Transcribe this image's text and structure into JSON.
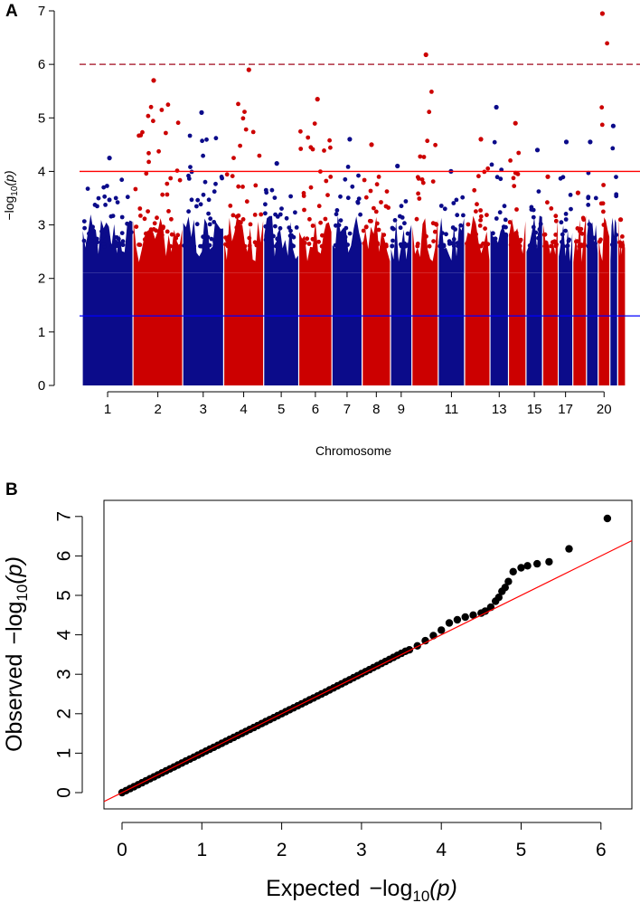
{
  "panels": {
    "a": {
      "label": "A"
    },
    "b": {
      "label": "B"
    }
  },
  "chart_data": [
    {
      "type": "scatter",
      "subtype": "manhattan",
      "title": "",
      "xlabel": "Chromosome",
      "ylabel_base": "−log",
      "ylabel_sub": "10",
      "ylabel_arg": "(p)",
      "ylim": [
        0,
        7
      ],
      "yticks": [
        "0",
        "1",
        "2",
        "3",
        "4",
        "5",
        "6",
        "7"
      ],
      "xtick_labels": [
        "1",
        "2",
        "3",
        "4",
        "5",
        "6",
        "7",
        "8",
        "9",
        "11",
        "13",
        "15",
        "17",
        "20"
      ],
      "xtick_chromosomes": [
        1,
        2,
        3,
        4,
        5,
        6,
        7,
        8,
        9,
        11,
        13,
        15,
        17,
        20
      ],
      "colors": {
        "odd": "#0b0b8a",
        "even": "#cc0000",
        "suggestive_line": "#ff0000",
        "genome_wide_line": "#b03040",
        "nominal_line": "#0000ff"
      },
      "thresholds": {
        "nominal": 1.3,
        "suggestive": 4.0,
        "genome_wide": 6.0
      },
      "chromosomes": [
        {
          "chr": 1,
          "peak": 4.25
        },
        {
          "chr": 2,
          "peak": 5.7
        },
        {
          "chr": 3,
          "peak": 5.1
        },
        {
          "chr": 4,
          "peak": 5.9
        },
        {
          "chr": 5,
          "peak": 4.15
        },
        {
          "chr": 6,
          "peak": 5.35
        },
        {
          "chr": 7,
          "peak": 4.6
        },
        {
          "chr": 8,
          "peak": 4.5
        },
        {
          "chr": 9,
          "peak": 4.1
        },
        {
          "chr": 10,
          "peak": 6.18
        },
        {
          "chr": 11,
          "peak": 4.0
        },
        {
          "chr": 12,
          "peak": 4.6
        },
        {
          "chr": 13,
          "peak": 5.2
        },
        {
          "chr": 14,
          "peak": 4.9
        },
        {
          "chr": 15,
          "peak": 4.4
        },
        {
          "chr": 16,
          "peak": 3.9
        },
        {
          "chr": 17,
          "peak": 4.55
        },
        {
          "chr": 18,
          "peak": 3.6
        },
        {
          "chr": 19,
          "peak": 4.55
        },
        {
          "chr": 20,
          "peak": 6.95
        },
        {
          "chr": 21,
          "peak": 4.85
        },
        {
          "chr": 22,
          "peak": 3.1
        }
      ]
    },
    {
      "type": "scatter",
      "subtype": "qq",
      "title": "",
      "xlabel_prefix": "Expected",
      "ylabel_prefix": "Observed",
      "axis_expr_base": "−log",
      "axis_expr_sub": "10",
      "axis_expr_arg": "(p)",
      "xlim": [
        0,
        6.3
      ],
      "ylim": [
        0,
        7
      ],
      "xticks": [
        "0",
        "1",
        "2",
        "3",
        "4",
        "5",
        "6"
      ],
      "yticks": [
        "0",
        "1",
        "2",
        "3",
        "4",
        "5",
        "6",
        "7"
      ],
      "reference_line": {
        "slope": 1,
        "color": "#ff0000"
      },
      "tail_points": [
        {
          "x": 3.6,
          "y": 3.62
        },
        {
          "x": 3.7,
          "y": 3.72
        },
        {
          "x": 3.8,
          "y": 3.85
        },
        {
          "x": 3.9,
          "y": 3.98
        },
        {
          "x": 4.0,
          "y": 4.12
        },
        {
          "x": 4.1,
          "y": 4.3
        },
        {
          "x": 4.2,
          "y": 4.38
        },
        {
          "x": 4.3,
          "y": 4.45
        },
        {
          "x": 4.4,
          "y": 4.5
        },
        {
          "x": 4.5,
          "y": 4.55
        },
        {
          "x": 4.55,
          "y": 4.6
        },
        {
          "x": 4.62,
          "y": 4.7
        },
        {
          "x": 4.68,
          "y": 4.85
        },
        {
          "x": 4.72,
          "y": 4.95
        },
        {
          "x": 4.76,
          "y": 5.1
        },
        {
          "x": 4.8,
          "y": 5.2
        },
        {
          "x": 4.84,
          "y": 5.35
        },
        {
          "x": 4.9,
          "y": 5.6
        },
        {
          "x": 5.0,
          "y": 5.7
        },
        {
          "x": 5.08,
          "y": 5.75
        },
        {
          "x": 5.2,
          "y": 5.8
        },
        {
          "x": 5.35,
          "y": 5.85
        },
        {
          "x": 5.6,
          "y": 6.18
        },
        {
          "x": 6.08,
          "y": 6.95
        }
      ],
      "point_color": "#000000"
    }
  ]
}
